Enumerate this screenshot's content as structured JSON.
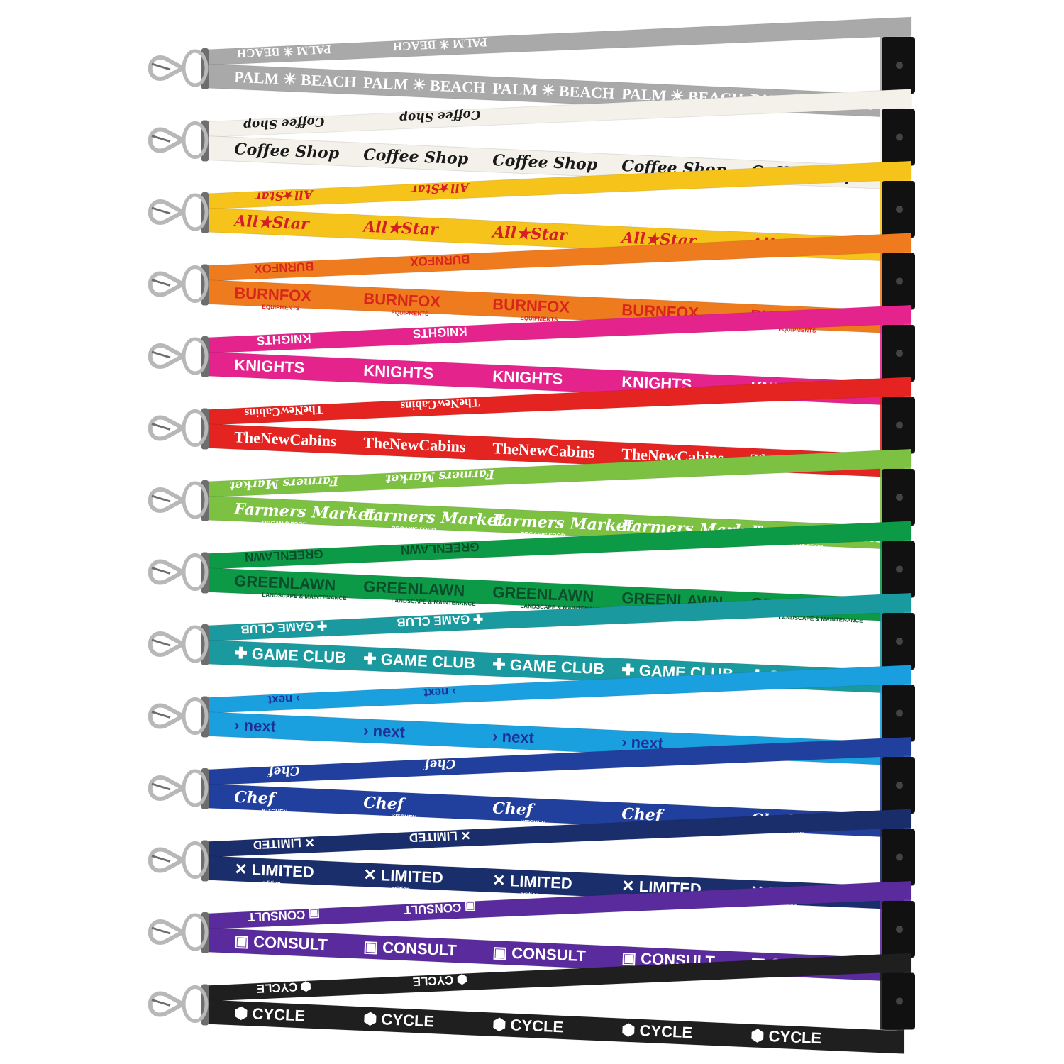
{
  "lanyards": [
    {
      "brand": "Palm Beach",
      "label": "PALM ☀ BEACH",
      "color": "#a9a9a9",
      "text_color": "#ffffff",
      "accent": "#8b1a1a",
      "style": "serif"
    },
    {
      "brand": "Coffee Shop",
      "label": "Coffee Shop",
      "color": "#f3f1ea",
      "text_color": "#1a1a1a",
      "accent": "#7fa58a",
      "style": "script"
    },
    {
      "brand": "All Star",
      "label": "All★Star",
      "color": "#f6c31b",
      "text_color": "#d41f26",
      "accent": "#f39a1e",
      "style": "script"
    },
    {
      "brand": "Burn Fox Equipments",
      "label": "BURNFOX",
      "sublabel": "EQUIPMENTS",
      "color": "#ef7b1f",
      "text_color": "#d9261c",
      "accent": "#ffffff",
      "style": "bold"
    },
    {
      "brand": "Knights",
      "label": "KNIGHTS",
      "color": "#e5238d",
      "text_color": "#ffffff",
      "accent": "#1e2a5a",
      "style": "bold"
    },
    {
      "brand": "The New Cabins",
      "label": "TheNewCabins",
      "color": "#e42421",
      "text_color": "#ffffff",
      "accent": "#f6a21c",
      "style": "serif"
    },
    {
      "brand": "Farmers Market Organic Food",
      "label": "Farmers Market",
      "sublabel": "ORGANIC FOOD",
      "color": "#7dc143",
      "text_color": "#ffffff",
      "accent": "#2f4f3a",
      "style": "script"
    },
    {
      "brand": "Green Lawn Landscape & Maintenance",
      "label": "GREENLAWN",
      "sublabel": "LANDSCAPE & MAINTENANCE",
      "color": "#0c9a47",
      "text_color": "#0b4d2a",
      "accent": "#ffffff",
      "style": "bold"
    },
    {
      "brand": "Game Club",
      "label": "✚ GAME CLUB",
      "color": "#1a9a9f",
      "text_color": "#ffffff",
      "accent": "#f4c21b",
      "style": "bold"
    },
    {
      "brand": "next",
      "label": "› next",
      "color": "#1a9fdf",
      "text_color": "#1f2f9a",
      "accent": "#ffffff",
      "style": "bold"
    },
    {
      "brand": "Chef Kitchen",
      "label": "Chef",
      "sublabel": "KITCHEN",
      "color": "#213f9d",
      "text_color": "#ffffff",
      "accent": "#8fd04a",
      "style": "script"
    },
    {
      "brand": "Limited Edition",
      "label": "✕ LIMITED",
      "sublabel": "edition",
      "color": "#1b2e6c",
      "text_color": "#ffffff",
      "accent": "#2aa6e0",
      "style": "bold"
    },
    {
      "brand": "Consult",
      "label": "▣ CONSULT",
      "color": "#5a2b9d",
      "text_color": "#ffffff",
      "accent": "#e2388d",
      "style": "bold"
    },
    {
      "brand": "Cycle",
      "label": "⬢ CYCLE",
      "color": "#1f1f1f",
      "text_color": "#ffffff",
      "accent": "#c43a9a",
      "style": "bold"
    }
  ],
  "hardware": {
    "hook_color": "#b8b8b8",
    "hook_dark": "#6e6e6e",
    "buckle_color": "#111111"
  }
}
